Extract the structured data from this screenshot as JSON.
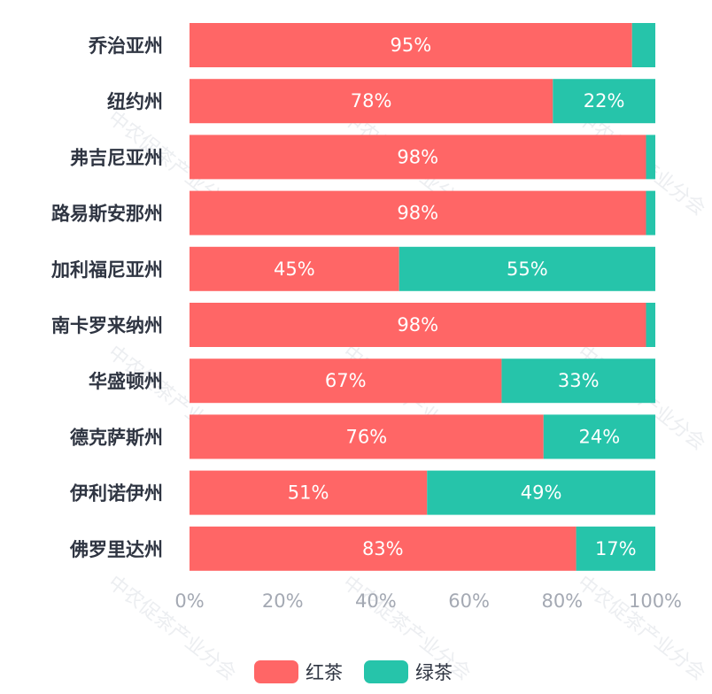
{
  "chart_data": {
    "type": "bar",
    "orientation": "horizontal",
    "stacked": true,
    "percent_stacked": true,
    "categories": [
      "乔治亚州",
      "纽约州",
      "弗吉尼亚州",
      "路易斯安那州",
      "加利福尼亚州",
      "南卡罗来纳州",
      "华盛顿州",
      "德克萨斯州",
      "伊利诺伊州",
      "佛罗里达州"
    ],
    "series": [
      {
        "name": "红茶",
        "color": "#ff6666",
        "values": [
          95,
          78,
          98,
          98,
          45,
          98,
          67,
          76,
          51,
          83
        ],
        "labels": [
          "95%",
          "78%",
          "98%",
          "98%",
          "45%",
          "98%",
          "67%",
          "76%",
          "51%",
          "83%"
        ]
      },
      {
        "name": "绿茶",
        "color": "#26c4aa",
        "values": [
          5,
          22,
          2,
          2,
          55,
          2,
          33,
          24,
          49,
          17
        ],
        "labels": [
          "",
          "22%",
          "",
          "",
          "55%",
          "",
          "33%",
          "24%",
          "49%",
          "17%"
        ]
      }
    ],
    "xlim": [
      0,
      100
    ],
    "xticks": [
      "0%",
      "20%",
      "40%",
      "60%",
      "80%",
      "100%"
    ],
    "legend_position": "bottom",
    "grid": false
  },
  "watermark": "中农促茶产业分会"
}
